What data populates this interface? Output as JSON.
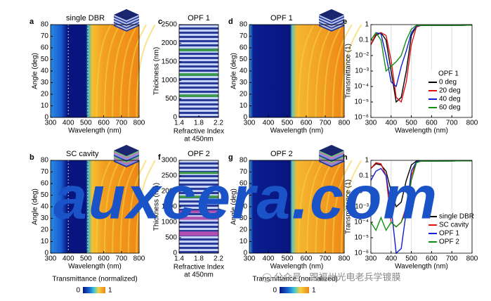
{
  "chart_data": [
    {
      "type": "heatmap",
      "letter": "a",
      "title": "single DBR",
      "xlabel": "Wavelength (nm)",
      "ylabel": "Angle (deg)",
      "xlim": [
        300,
        800
      ],
      "xticks": [
        300,
        400,
        500,
        600,
        700,
        800
      ],
      "ylim": [
        0,
        80
      ],
      "yticks": [
        0,
        10,
        20,
        30,
        40,
        50,
        60,
        70,
        80
      ]
    },
    {
      "type": "stack",
      "letter": "c",
      "title": "OPF 1",
      "xlabel": [
        "Refractive Index",
        "at 450nm"
      ],
      "ylabel": "Thickness (nm)",
      "xlim": [
        1.4,
        2.2
      ],
      "xticks": [
        1.4,
        1.8,
        2.2
      ],
      "ylim": [
        0,
        2500
      ],
      "yticks": [
        0,
        500,
        1000,
        1500,
        2000,
        2500
      ]
    },
    {
      "type": "heatmap",
      "letter": "d",
      "title": "OPF 1",
      "xlabel": "Wavelength (nm)",
      "ylabel": "Angle (deg)",
      "xlim": [
        300,
        800
      ],
      "xticks": [
        300,
        400,
        500,
        600,
        700,
        800
      ],
      "ylim": [
        0,
        80
      ],
      "yticks": [
        0,
        10,
        20,
        30,
        40,
        50,
        60,
        70,
        80
      ]
    },
    {
      "type": "line",
      "letter": "e",
      "ylabel": "Transmittance (1)",
      "xlabel": "Wavelength (nm)",
      "log_y": true,
      "grid": true,
      "legend_title": "OPF 1",
      "xlim": [
        300,
        800
      ],
      "xticks": [
        300,
        400,
        500,
        600,
        700,
        800
      ],
      "ylim": [
        1e-06,
        1
      ],
      "yticks": [
        {
          "value": 1e-06,
          "label": "10⁻⁶"
        },
        {
          "value": 1e-05,
          "label": "10⁻⁵"
        },
        {
          "value": 0.0001,
          "label": "10⁻⁴"
        },
        {
          "value": 0.001,
          "label": "10⁻³"
        },
        {
          "value": 0.01,
          "label": "10⁻²"
        },
        0.1,
        1
      ],
      "x": [
        300,
        325,
        350,
        375,
        400,
        425,
        450,
        475,
        500,
        525,
        550,
        600,
        650,
        700,
        750,
        800
      ],
      "series": [
        {
          "name": "0 deg",
          "color": "#000000",
          "values": [
            0.05,
            0.2,
            0.3,
            0.1,
            0.001,
            1e-05,
            2e-05,
            0.001,
            0.2,
            0.8,
            0.9,
            0.9,
            0.9,
            0.9,
            0.95,
            0.95
          ]
        },
        {
          "name": "20 deg",
          "color": "#e01010",
          "values": [
            0.05,
            0.25,
            0.3,
            0.2,
            0.005,
            2e-05,
            1e-05,
            0.0002,
            0.05,
            0.7,
            0.9,
            0.9,
            0.9,
            0.9,
            0.9,
            0.95
          ]
        },
        {
          "name": "40 deg",
          "color": "#1020d0",
          "values": [
            0.1,
            0.3,
            0.25,
            0.01,
            0.0002,
            0.0001,
            0.002,
            0.02,
            0.3,
            0.8,
            0.9,
            0.9,
            0.9,
            0.9,
            0.9,
            0.95
          ]
        },
        {
          "name": "60 deg",
          "color": "#109010",
          "values": [
            0.1,
            0.3,
            0.1,
            0.001,
            0.002,
            0.004,
            0.01,
            0.1,
            0.5,
            0.9,
            0.9,
            0.9,
            0.9,
            0.9,
            0.9,
            0.95
          ]
        }
      ]
    },
    {
      "type": "heatmap",
      "letter": "b",
      "title": "SC cavity",
      "xlabel": "Wavelength (nm)",
      "ylabel": "Angle (deg)",
      "xlim": [
        300,
        800
      ],
      "xticks": [
        300,
        400,
        500,
        600,
        700,
        800
      ],
      "ylim": [
        0,
        80
      ],
      "yticks": [
        0,
        10,
        20,
        30,
        40,
        50,
        60,
        70,
        80
      ]
    },
    {
      "type": "stack",
      "letter": "f",
      "title": "OPF 2",
      "xlabel": [
        "Refractive Index",
        "at 450nm"
      ],
      "ylabel": "Thickness (nm)",
      "xlim": [
        1.4,
        2.2
      ],
      "xticks": [
        1.4,
        1.8,
        2.2
      ],
      "ylim": [
        0,
        3000
      ],
      "yticks": [
        0,
        500,
        1000,
        1500,
        2000,
        2500,
        3000
      ]
    },
    {
      "type": "heatmap",
      "letter": "g",
      "title": "OPF 2",
      "xlabel": "Wavelength (nm)",
      "ylabel": "Angle (deg)",
      "xlim": [
        300,
        800
      ],
      "xticks": [
        300,
        400,
        500,
        600,
        700,
        800
      ],
      "ylim": [
        0,
        80
      ],
      "yticks": [
        0,
        10,
        20,
        30,
        40,
        50,
        60,
        70,
        80
      ]
    },
    {
      "type": "line",
      "letter": "h",
      "ylabel": "Transmittance (1)",
      "xlabel": "Wavelength (nm)",
      "log_y": true,
      "grid": true,
      "xlim": [
        300,
        800
      ],
      "xticks": [
        300,
        400,
        500,
        600,
        700,
        800
      ],
      "ylim": [
        1e-06,
        1
      ],
      "yticks": [
        {
          "value": 1e-06,
          "label": "10⁻⁶"
        },
        {
          "value": 1e-05,
          "label": "10⁻⁵"
        },
        {
          "value": 0.0001,
          "label": "10⁻⁴"
        },
        {
          "value": 0.001,
          "label": "10⁻³"
        },
        {
          "value": 0.01,
          "label": "10⁻²"
        },
        0.1,
        1
      ],
      "x": [
        300,
        325,
        350,
        375,
        400,
        425,
        450,
        475,
        500,
        525,
        550,
        600,
        650,
        700,
        750,
        800
      ],
      "series": [
        {
          "name": "single DBR",
          "color": "#000000",
          "values": [
            0.3,
            0.6,
            0.5,
            0.2,
            0.01,
            0.001,
            0.002,
            0.05,
            0.5,
            0.9,
            0.9,
            0.9,
            0.95,
            0.95,
            0.95,
            0.95
          ]
        },
        {
          "name": "SC cavity",
          "color": "#e01010",
          "values": [
            0.3,
            0.7,
            0.6,
            0.1,
            0.0001,
            5e-05,
            0.0001,
            0.001,
            0.1,
            0.8,
            0.9,
            0.9,
            0.9,
            0.95,
            0.95,
            0.95
          ]
        },
        {
          "name": "OPF 1",
          "color": "#1020d0",
          "values": [
            0.05,
            0.2,
            0.3,
            0.1,
            0.001,
            1e-06,
            2e-06,
            0.0005,
            0.2,
            0.8,
            0.9,
            0.9,
            0.9,
            0.9,
            0.95,
            0.95
          ]
        },
        {
          "name": "OPF 2",
          "color": "#109010",
          "values": [
            0.0001,
            3e-05,
            0.0002,
            3e-05,
            0.0001,
            5e-05,
            0.0001,
            0.0005,
            0.05,
            0.7,
            0.9,
            0.9,
            0.9,
            0.9,
            0.95,
            0.95
          ]
        }
      ]
    }
  ],
  "colorbars": [
    {
      "label": "Transmittance (normalized)",
      "ticks": [
        0,
        1
      ]
    },
    {
      "label": "Transmittance (normalized)",
      "ticks": [
        0,
        1
      ]
    }
  ],
  "watermark": {
    "text": "auxcera.com",
    "source": "公众号 · 跟福州光电老兵学镀膜"
  }
}
